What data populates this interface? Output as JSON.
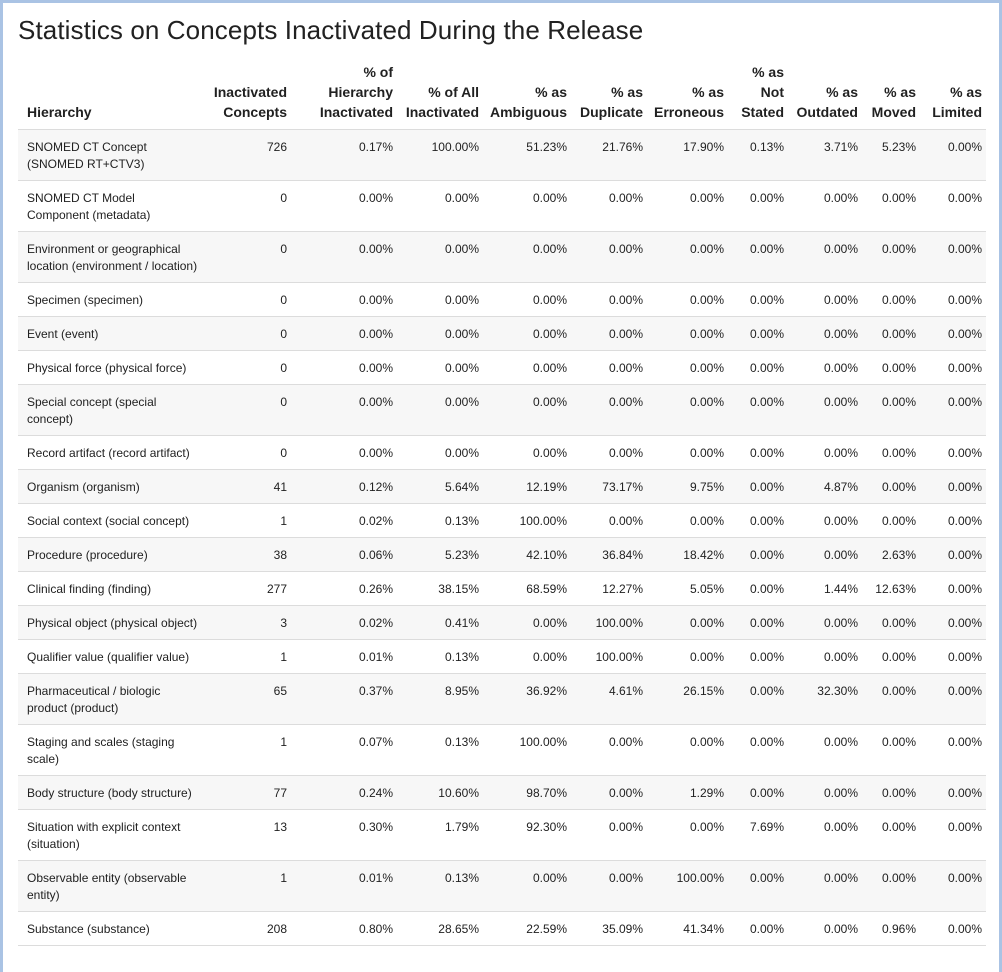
{
  "title": "Statistics on Concepts Inactivated During the Release",
  "columns": [
    {
      "key": "hierarchy",
      "lines": [
        "Hierarchy"
      ]
    },
    {
      "key": "inactivated",
      "lines": [
        "Inactivated",
        "Concepts"
      ]
    },
    {
      "key": "pct_hierarchy",
      "lines": [
        "% of",
        "Hierarchy",
        "Inactivated"
      ]
    },
    {
      "key": "pct_all",
      "lines": [
        "% of All",
        "Inactivated"
      ]
    },
    {
      "key": "pct_ambiguous",
      "lines": [
        "% as",
        "Ambiguous"
      ]
    },
    {
      "key": "pct_duplicate",
      "lines": [
        "% as",
        "Duplicate"
      ]
    },
    {
      "key": "pct_erroneous",
      "lines": [
        "% as",
        "Erroneous"
      ]
    },
    {
      "key": "pct_not_stated",
      "lines": [
        "% as",
        "Not",
        "Stated"
      ]
    },
    {
      "key": "pct_outdated",
      "lines": [
        "% as",
        "Outdated"
      ]
    },
    {
      "key": "pct_moved",
      "lines": [
        "% as",
        "Moved"
      ]
    },
    {
      "key": "pct_limited",
      "lines": [
        "% as",
        "Limited"
      ]
    }
  ],
  "rows": [
    [
      "SNOMED CT Concept (SNOMED RT+CTV3)",
      "726",
      "0.17%",
      "100.00%",
      "51.23%",
      "21.76%",
      "17.90%",
      "0.13%",
      "3.71%",
      "5.23%",
      "0.00%"
    ],
    [
      "SNOMED CT Model Component (metadata)",
      "0",
      "0.00%",
      "0.00%",
      "0.00%",
      "0.00%",
      "0.00%",
      "0.00%",
      "0.00%",
      "0.00%",
      "0.00%"
    ],
    [
      "Environment or geographical location (environment / location)",
      "0",
      "0.00%",
      "0.00%",
      "0.00%",
      "0.00%",
      "0.00%",
      "0.00%",
      "0.00%",
      "0.00%",
      "0.00%"
    ],
    [
      "Specimen (specimen)",
      "0",
      "0.00%",
      "0.00%",
      "0.00%",
      "0.00%",
      "0.00%",
      "0.00%",
      "0.00%",
      "0.00%",
      "0.00%"
    ],
    [
      "Event (event)",
      "0",
      "0.00%",
      "0.00%",
      "0.00%",
      "0.00%",
      "0.00%",
      "0.00%",
      "0.00%",
      "0.00%",
      "0.00%"
    ],
    [
      "Physical force (physical force)",
      "0",
      "0.00%",
      "0.00%",
      "0.00%",
      "0.00%",
      "0.00%",
      "0.00%",
      "0.00%",
      "0.00%",
      "0.00%"
    ],
    [
      "Special concept (special concept)",
      "0",
      "0.00%",
      "0.00%",
      "0.00%",
      "0.00%",
      "0.00%",
      "0.00%",
      "0.00%",
      "0.00%",
      "0.00%"
    ],
    [
      "Record artifact (record artifact)",
      "0",
      "0.00%",
      "0.00%",
      "0.00%",
      "0.00%",
      "0.00%",
      "0.00%",
      "0.00%",
      "0.00%",
      "0.00%"
    ],
    [
      "Organism (organism)",
      "41",
      "0.12%",
      "5.64%",
      "12.19%",
      "73.17%",
      "9.75%",
      "0.00%",
      "4.87%",
      "0.00%",
      "0.00%"
    ],
    [
      "Social context (social concept)",
      "1",
      "0.02%",
      "0.13%",
      "100.00%",
      "0.00%",
      "0.00%",
      "0.00%",
      "0.00%",
      "0.00%",
      "0.00%"
    ],
    [
      "Procedure (procedure)",
      "38",
      "0.06%",
      "5.23%",
      "42.10%",
      "36.84%",
      "18.42%",
      "0.00%",
      "0.00%",
      "2.63%",
      "0.00%"
    ],
    [
      "Clinical finding (finding)",
      "277",
      "0.26%",
      "38.15%",
      "68.59%",
      "12.27%",
      "5.05%",
      "0.00%",
      "1.44%",
      "12.63%",
      "0.00%"
    ],
    [
      "Physical object (physical object)",
      "3",
      "0.02%",
      "0.41%",
      "0.00%",
      "100.00%",
      "0.00%",
      "0.00%",
      "0.00%",
      "0.00%",
      "0.00%"
    ],
    [
      "Qualifier value (qualifier value)",
      "1",
      "0.01%",
      "0.13%",
      "0.00%",
      "100.00%",
      "0.00%",
      "0.00%",
      "0.00%",
      "0.00%",
      "0.00%"
    ],
    [
      "Pharmaceutical / biologic product (product)",
      "65",
      "0.37%",
      "8.95%",
      "36.92%",
      "4.61%",
      "26.15%",
      "0.00%",
      "32.30%",
      "0.00%",
      "0.00%"
    ],
    [
      "Staging and scales (staging scale)",
      "1",
      "0.07%",
      "0.13%",
      "100.00%",
      "0.00%",
      "0.00%",
      "0.00%",
      "0.00%",
      "0.00%",
      "0.00%"
    ],
    [
      "Body structure (body structure)",
      "77",
      "0.24%",
      "10.60%",
      "98.70%",
      "0.00%",
      "1.29%",
      "0.00%",
      "0.00%",
      "0.00%",
      "0.00%"
    ],
    [
      "Situation with explicit context (situation)",
      "13",
      "0.30%",
      "1.79%",
      "92.30%",
      "0.00%",
      "0.00%",
      "7.69%",
      "0.00%",
      "0.00%",
      "0.00%"
    ],
    [
      "Observable entity (observable entity)",
      "1",
      "0.01%",
      "0.13%",
      "0.00%",
      "0.00%",
      "100.00%",
      "0.00%",
      "0.00%",
      "0.00%",
      "0.00%"
    ],
    [
      "Substance (substance)",
      "208",
      "0.80%",
      "28.65%",
      "22.59%",
      "35.09%",
      "41.34%",
      "0.00%",
      "0.00%",
      "0.96%",
      "0.00%"
    ]
  ],
  "colors": {
    "frame_border": "#aac3e4",
    "row_stripe": "#f7f7f7",
    "row_divider": "#dcdcdc",
    "text": "#212121"
  }
}
